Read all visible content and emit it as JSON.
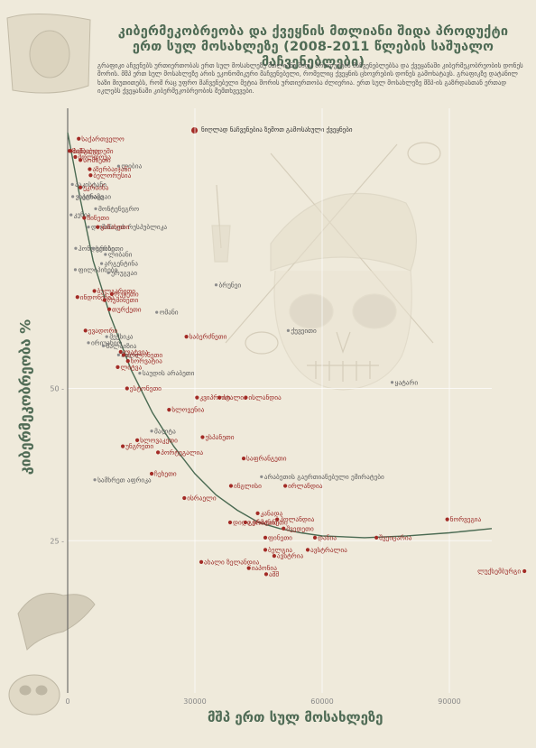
{
  "title": "კიბერმეკობრეობა და ქვეყნის მთლიანი შიდა პროდუქტი ერთ სულ მოსახლეზე (2008-2011 წლების საშუალო მაჩვენებლები)",
  "description": "გრაფიკი აჩვენებს ურთიერთობას ერთ სულ მოსახლეზე მთლიანი შიდა პროდუქტის მაჩვენებლებსა და ქვეყანაში კიბერმეკობრეობის დონეს შორის. მშპ ერთ სულ მოსახლეზე არის ეკონომიკური მაჩვენებელი, რომელიც ქვეყნის ცხოვრების დონეს გამოხატავს. გრაფიკზე დატანილ ხაზი მიუთითებს, რომ რაც უფრო მაჩვენებელი მეტია შორის ურთიერთობა ძლიერია. ერთ სულ მოსახლეზე მშპ-ის გაზრდასთან ერთად იკლებს ქვეყანაში კიბერმეკობრეობის შემთხვევები.",
  "legend_label": "ნიღლად ნაჩვენებია ზემოთ გამოსახული ქვეყნები",
  "colors": {
    "highlight": "#a32b26",
    "other": "#8c8c8c",
    "trend": "#4a6a52",
    "title": "#4f6b55"
  },
  "chart_data": {
    "type": "scatter",
    "xlabel": "მშპ ერთ სულ მოსახლეზე",
    "ylabel": "კიბერმეკობრეობა %",
    "xlim": [
      0,
      100000
    ],
    "ylim": [
      0,
      96
    ],
    "xticks": [
      {
        "v": 0,
        "label": "0"
      },
      {
        "v": 30000,
        "label": "30000"
      },
      {
        "v": 60000,
        "label": "60000"
      },
      {
        "v": 90000,
        "label": "90000"
      }
    ],
    "yticks": [
      {
        "v": 25,
        "label": "25 -"
      },
      {
        "v": 50,
        "label": "50 -"
      }
    ],
    "trend_line": [
      [
        0,
        92
      ],
      [
        3000,
        81
      ],
      [
        6000,
        71
      ],
      [
        10000,
        62
      ],
      [
        15000,
        53
      ],
      [
        20000,
        46
      ],
      [
        25000,
        40.5
      ],
      [
        30000,
        36
      ],
      [
        35000,
        32.5
      ],
      [
        40000,
        30
      ],
      [
        45000,
        28
      ],
      [
        50000,
        27
      ],
      [
        55000,
        26.3
      ],
      [
        60000,
        25.8
      ],
      [
        70000,
        25.5
      ],
      [
        80000,
        25.8
      ],
      [
        90000,
        26.3
      ],
      [
        100000,
        27
      ]
    ],
    "points": [
      {
        "name": "საქართველო",
        "x": 2600,
        "y": 91,
        "highlight": true
      },
      {
        "name": "ზიმბაბვე",
        "x": 450,
        "y": 89,
        "highlight": true
      },
      {
        "name": "ბანგლადეში",
        "x": 700,
        "y": 89,
        "highlight": true
      },
      {
        "name": "მოლდოვა",
        "x": 1800,
        "y": 88,
        "highlight": true
      },
      {
        "name": "სომხეთი",
        "x": 3000,
        "y": 87.5,
        "highlight": true
      },
      {
        "name": "ლიბია",
        "x": 12000,
        "y": 86.5,
        "highlight": false
      },
      {
        "name": "აზერბაიჯანი",
        "x": 5200,
        "y": 86,
        "highlight": true
      },
      {
        "name": "ბელორუსია",
        "x": 5400,
        "y": 85,
        "highlight": true
      },
      {
        "name": "პაკისტანი",
        "x": 1100,
        "y": 83.5,
        "highlight": false
      },
      {
        "name": "უკრაინა",
        "x": 3000,
        "y": 83,
        "highlight": true
      },
      {
        "name": "ვიეტნამი",
        "x": 1200,
        "y": 81.5,
        "highlight": false
      },
      {
        "name": "პარაგვაი",
        "x": 2700,
        "y": 81.5,
        "highlight": false
      },
      {
        "name": "მონტენეგრო",
        "x": 6600,
        "y": 79.5,
        "highlight": false
      },
      {
        "name": "კენია",
        "x": 800,
        "y": 78.5,
        "highlight": false
      },
      {
        "name": "ჩინეთი",
        "x": 3900,
        "y": 78,
        "highlight": true
      },
      {
        "name": "დომინიკის რესპუბლიკა",
        "x": 4900,
        "y": 76.5,
        "highlight": false
      },
      {
        "name": "ყაზახეთი",
        "x": 7100,
        "y": 76.5,
        "highlight": true
      },
      {
        "name": "ჰონდურასი",
        "x": 1900,
        "y": 73,
        "highlight": false
      },
      {
        "name": "სერბეთი",
        "x": 6000,
        "y": 73,
        "highlight": false
      },
      {
        "name": "ლიბანი",
        "x": 8900,
        "y": 72,
        "highlight": false
      },
      {
        "name": "არგენტინა",
        "x": 8000,
        "y": 70.5,
        "highlight": false
      },
      {
        "name": "ფილიპინები",
        "x": 1800,
        "y": 69.5,
        "highlight": false
      },
      {
        "name": "ურუგვაი",
        "x": 9600,
        "y": 69,
        "highlight": false
      },
      {
        "name": "ბრუნეი",
        "x": 35000,
        "y": 67,
        "highlight": false
      },
      {
        "name": "ბულგარეთი",
        "x": 6300,
        "y": 66,
        "highlight": true
      },
      {
        "name": "რუსეთი",
        "x": 10400,
        "y": 65.5,
        "highlight": true
      },
      {
        "name": "ინდონეზია",
        "x": 2300,
        "y": 65,
        "highlight": true
      },
      {
        "name": "რუმინეთი",
        "x": 8700,
        "y": 64.5,
        "highlight": true
      },
      {
        "name": "თურქეთი",
        "x": 9800,
        "y": 63,
        "highlight": true
      },
      {
        "name": "ომანი",
        "x": 21000,
        "y": 62.5,
        "highlight": false
      },
      {
        "name": "ქუვეითი",
        "x": 52000,
        "y": 59.5,
        "highlight": false
      },
      {
        "name": "ევადორი",
        "x": 4200,
        "y": 59.5,
        "highlight": true
      },
      {
        "name": "საბერძნეთი",
        "x": 28000,
        "y": 58.5,
        "highlight": true
      },
      {
        "name": "მექსიკა",
        "x": 9200,
        "y": 58.5,
        "highlight": false
      },
      {
        "name": "ირიუანიო",
        "x": 4900,
        "y": 57.5,
        "highlight": false
      },
      {
        "name": "მალაიზია",
        "x": 8400,
        "y": 57,
        "highlight": false
      },
      {
        "name": "ლატვია",
        "x": 12500,
        "y": 56,
        "highlight": true
      },
      {
        "name": "ჩილი",
        "x": 12000,
        "y": 55.5,
        "highlight": false
      },
      {
        "name": "პოლონეთი",
        "x": 13200,
        "y": 55.5,
        "highlight": true
      },
      {
        "name": "ხორვატია",
        "x": 14200,
        "y": 54.5,
        "highlight": true
      },
      {
        "name": "ლიტვა",
        "x": 11800,
        "y": 53.5,
        "highlight": true
      },
      {
        "name": "საუდის არაბეთი",
        "x": 17000,
        "y": 52.5,
        "highlight": false
      },
      {
        "name": "ყატარი",
        "x": 76500,
        "y": 51,
        "highlight": false
      },
      {
        "name": "ესტონეთი",
        "x": 14000,
        "y": 50,
        "highlight": true
      },
      {
        "name": "კვიპროსი",
        "x": 30500,
        "y": 48.5,
        "highlight": true
      },
      {
        "name": "იტალია",
        "x": 35800,
        "y": 48.5,
        "highlight": true
      },
      {
        "name": "ისლანდია",
        "x": 42000,
        "y": 48.5,
        "highlight": true
      },
      {
        "name": "სლოვენია",
        "x": 23900,
        "y": 46.5,
        "highlight": true
      },
      {
        "name": "მალტა",
        "x": 19800,
        "y": 43,
        "highlight": false
      },
      {
        "name": "ესპანეთი",
        "x": 31800,
        "y": 42,
        "highlight": true
      },
      {
        "name": "სლოვაკეთი",
        "x": 16400,
        "y": 41.5,
        "highlight": true
      },
      {
        "name": "უნგრეთი",
        "x": 13000,
        "y": 40.5,
        "highlight": true
      },
      {
        "name": "პორტუგალია",
        "x": 21300,
        "y": 39.5,
        "highlight": true
      },
      {
        "name": "საფრანგეთი",
        "x": 41500,
        "y": 38.5,
        "highlight": true
      },
      {
        "name": "ჩეხეთი",
        "x": 19800,
        "y": 36,
        "highlight": true
      },
      {
        "name": "არაბეთის გაერთიანებული ემირატები",
        "x": 45700,
        "y": 35.5,
        "highlight": false
      },
      {
        "name": "სამხრეთ აფრიკა",
        "x": 6400,
        "y": 35,
        "highlight": false
      },
      {
        "name": "ინგლისი",
        "x": 38500,
        "y": 34,
        "highlight": true
      },
      {
        "name": "ირლანდია",
        "x": 51300,
        "y": 34,
        "highlight": true
      },
      {
        "name": "ისრაელი",
        "x": 27500,
        "y": 32,
        "highlight": true
      },
      {
        "name": "კანადა",
        "x": 44800,
        "y": 29.5,
        "highlight": true
      },
      {
        "name": "ნორვეგია",
        "x": 89500,
        "y": 28.5,
        "highlight": true
      },
      {
        "name": "ჰოლანდია",
        "x": 49400,
        "y": 28.5,
        "highlight": true
      },
      {
        "name": "გერმანია",
        "x": 41900,
        "y": 28,
        "highlight": true
      },
      {
        "name": "დიდი ბრიტანეთი",
        "x": 38300,
        "y": 28,
        "highlight": true
      },
      {
        "name": "შვედეთი",
        "x": 50900,
        "y": 27,
        "highlight": true
      },
      {
        "name": "ფინეთი",
        "x": 46600,
        "y": 25.5,
        "highlight": true
      },
      {
        "name": "დანია",
        "x": 58300,
        "y": 25.5,
        "highlight": true
      },
      {
        "name": "შვეიცარია",
        "x": 72800,
        "y": 25.5,
        "highlight": true
      },
      {
        "name": "ბელგია",
        "x": 46600,
        "y": 23.5,
        "highlight": true
      },
      {
        "name": "ავსტრალია",
        "x": 56600,
        "y": 23.5,
        "highlight": true
      },
      {
        "name": "ავსტრია",
        "x": 48700,
        "y": 22.5,
        "highlight": true
      },
      {
        "name": "ახალი ზელანდია",
        "x": 31500,
        "y": 21.5,
        "highlight": true
      },
      {
        "name": "იაპონია",
        "x": 42700,
        "y": 20.5,
        "highlight": true
      },
      {
        "name": "ლუქსემბურგი",
        "x": 107700,
        "y": 20,
        "highlight": true
      },
      {
        "name": "აშშ",
        "x": 46800,
        "y": 19.5,
        "highlight": true
      }
    ]
  }
}
